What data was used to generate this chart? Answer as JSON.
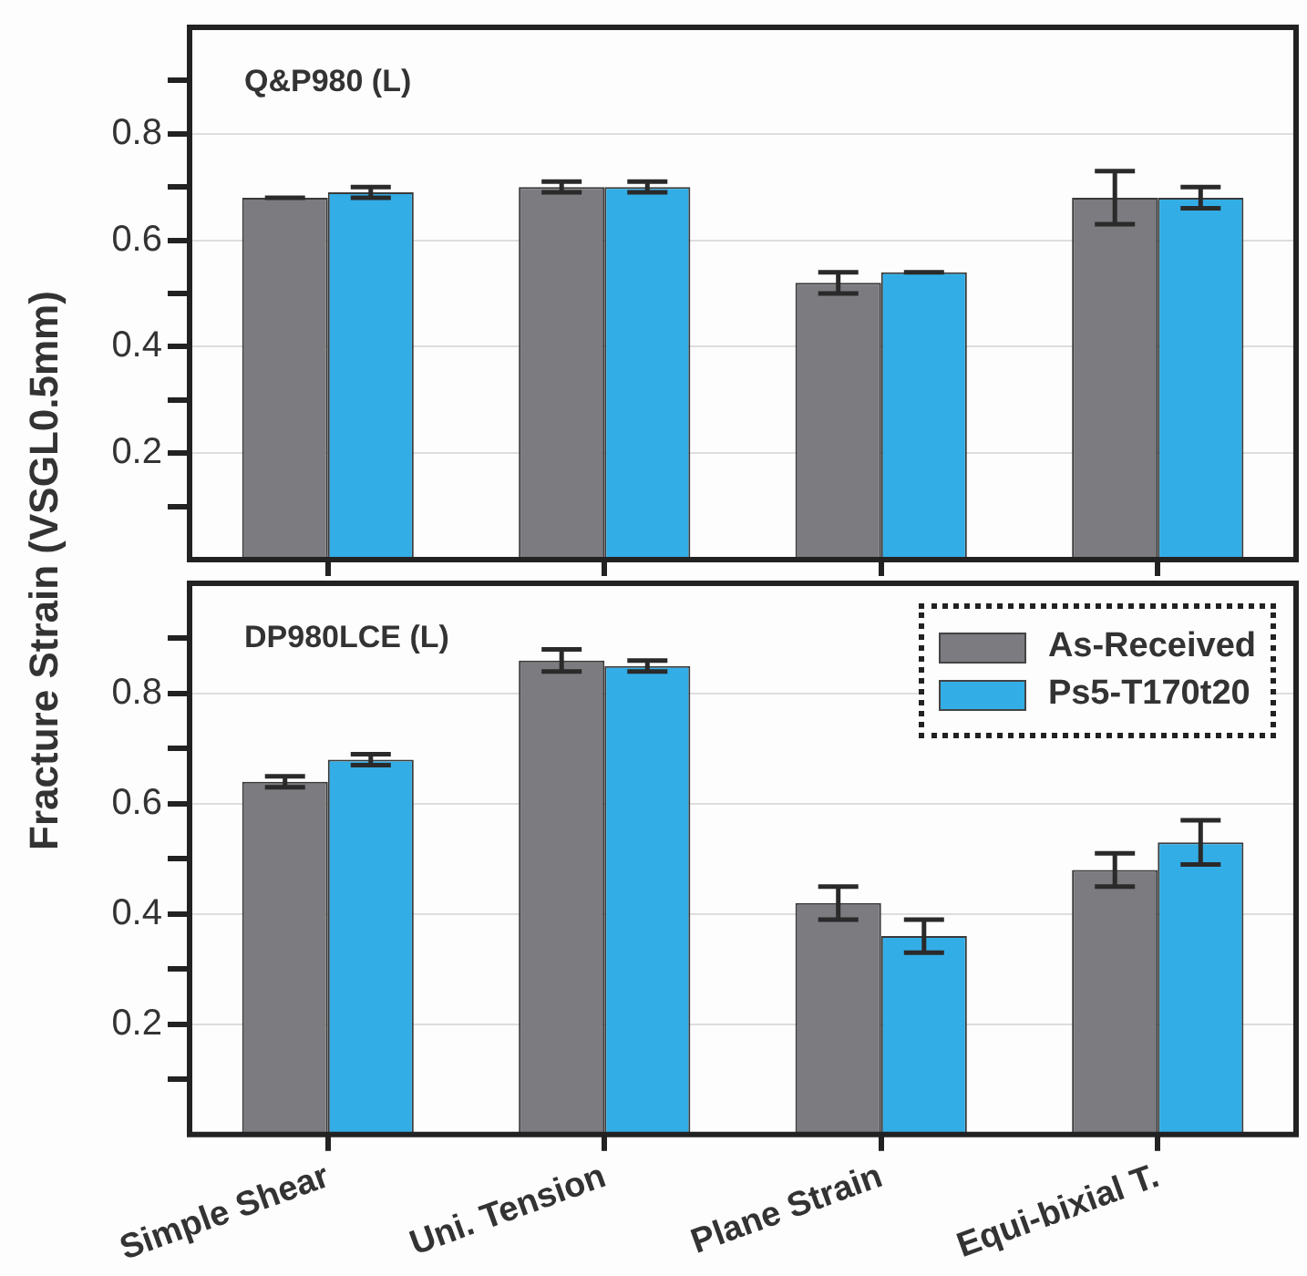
{
  "chart_data": [
    {
      "type": "bar",
      "title": "Q&P980 (L)",
      "ylabel": "Fracture Strain (VSGL0.5mm)",
      "categories": [
        null,
        null,
        null,
        null
      ],
      "series": [
        {
          "color": "#7b7b80",
          "values": [
            0.68,
            0.7,
            0.52,
            0.68
          ],
          "errors": [
            0,
            0.01,
            0.02,
            0.05
          ]
        },
        {
          "color": "#33ade6",
          "values": [
            0.69,
            0.7,
            0.54,
            0.68
          ],
          "errors": [
            0.01,
            0.01,
            0,
            0.02
          ]
        }
      ],
      "ylim": [
        0,
        1.0
      ],
      "yticks": [
        {
          "value": 0.1,
          "label": null
        },
        0.2,
        {
          "value": 0.3,
          "label": null
        },
        0.4,
        {
          "value": 0.5,
          "label": null
        },
        0.6,
        {
          "value": 0.7,
          "label": null
        },
        0.8,
        {
          "value": 0.9,
          "label": null
        }
      ],
      "grid": "y",
      "tick_labels": "y",
      "legend": false
    },
    {
      "type": "bar",
      "title": "DP980LCE (L)",
      "categories": [
        "Simple Shear",
        "Uni. Tension",
        "Plane Strain",
        "Equi-bixial T."
      ],
      "series": [
        {
          "name": "As-Received",
          "color": "#7b7b80",
          "values": [
            0.64,
            0.86,
            0.42,
            0.48
          ],
          "errors": [
            0.01,
            0.02,
            0.03,
            0.03
          ]
        },
        {
          "name": "Ps5-T170t20",
          "color": "#33ade6",
          "values": [
            0.68,
            0.85,
            0.36,
            0.53
          ],
          "errors": [
            0.01,
            0.01,
            0.03,
            0.04
          ]
        }
      ],
      "ylim": [
        0,
        1.0
      ],
      "yticks": [
        {
          "value": 0.1,
          "label": null
        },
        0.2,
        {
          "value": 0.3,
          "label": null
        },
        0.4,
        {
          "value": 0.5,
          "label": null
        },
        0.6,
        {
          "value": 0.7,
          "label": null
        },
        0.8,
        {
          "value": 0.9,
          "label": null
        }
      ],
      "grid": "y",
      "legend": "top right"
    }
  ]
}
